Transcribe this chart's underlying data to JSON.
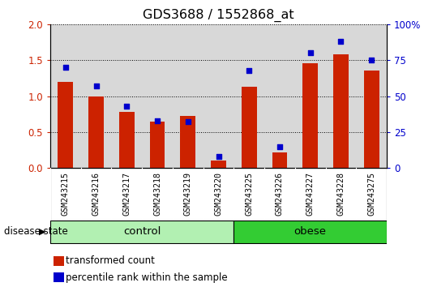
{
  "title": "GDS3688 / 1552868_at",
  "samples": [
    "GSM243215",
    "GSM243216",
    "GSM243217",
    "GSM243218",
    "GSM243219",
    "GSM243220",
    "GSM243225",
    "GSM243226",
    "GSM243227",
    "GSM243228",
    "GSM243275"
  ],
  "transformed_count": [
    1.2,
    1.0,
    0.78,
    0.65,
    0.72,
    0.1,
    1.13,
    0.22,
    1.46,
    1.58,
    1.36
  ],
  "percentile_rank": [
    70,
    57,
    43,
    33,
    32,
    8,
    68,
    15,
    80,
    88,
    75
  ],
  "groups": [
    {
      "label": "control",
      "start": 0,
      "end": 6,
      "color": "#b2f0b2"
    },
    {
      "label": "obese",
      "start": 6,
      "end": 11,
      "color": "#33cc33"
    }
  ],
  "ylim_left": [
    0,
    2.0
  ],
  "ylim_right": [
    0,
    100
  ],
  "yticks_left": [
    0,
    0.5,
    1.0,
    1.5,
    2.0
  ],
  "yticks_right": [
    0,
    25,
    50,
    75,
    100
  ],
  "bar_color": "#cc2200",
  "dot_color": "#0000cc",
  "legend_items": [
    "transformed count",
    "percentile rank within the sample"
  ],
  "disease_state_label": "disease state",
  "plot_bg": "#d8d8d8",
  "label_bg": "#d0d0d0"
}
